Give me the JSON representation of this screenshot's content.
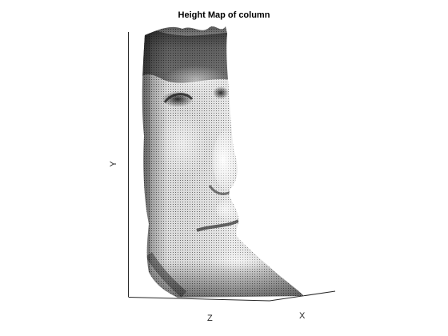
{
  "chart_data": {
    "type": "surface",
    "title": "Height Map of column",
    "xlabel": "X",
    "ylabel": "Y",
    "zlabel": "Z",
    "colormap": "gray",
    "grid": false,
    "surface_subject": "face-shaped height map",
    "axis_color": "#262626"
  }
}
